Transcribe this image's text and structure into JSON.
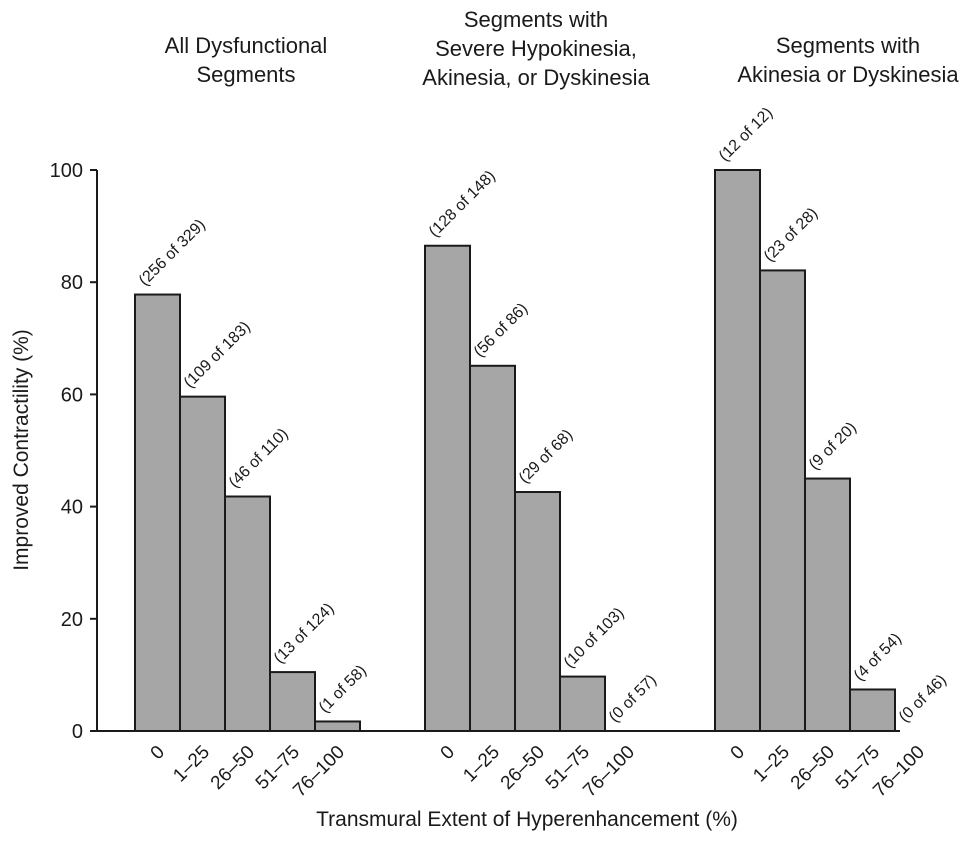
{
  "colors": {
    "bar_fill": "#a6a6a6",
    "bar_stroke": "#1a1a1a",
    "text": "#1a1a1a"
  },
  "chart_data": {
    "type": "bar",
    "xlabel": "Transmural Extent of Hyperenhancement (%)",
    "ylabel": "Improved Contractility (%)",
    "ylim": [
      0,
      100
    ],
    "yticks": [
      0,
      20,
      40,
      60,
      80,
      100
    ],
    "grid": false,
    "categories": [
      "0",
      "1–25",
      "26–50",
      "51–75",
      "76–100"
    ],
    "panels": [
      {
        "title_lines": [
          "All Dysfunctional",
          "Segments"
        ],
        "values": [
          77.8,
          59.6,
          41.8,
          10.5,
          1.7
        ],
        "labels": [
          "(256 of 329)",
          "(109 of 183)",
          "(46 of 110)",
          "(13 of 124)",
          "(1 of 58)"
        ]
      },
      {
        "title_lines": [
          "Segments with",
          "Severe Hypokinesia,",
          "Akinesia, or Dyskinesia"
        ],
        "values": [
          86.5,
          65.1,
          42.6,
          9.7,
          0
        ],
        "labels": [
          "(128 of 148)",
          "(56 of 86)",
          "(29 of 68)",
          "(10 of 103)",
          "(0 of 57)"
        ]
      },
      {
        "title_lines": [
          "Segments with",
          "Akinesia or Dyskinesia"
        ],
        "values": [
          100,
          82.1,
          45.0,
          7.4,
          0
        ],
        "labels": [
          "(12 of 12)",
          "(23 of 28)",
          "(9 of 20)",
          "(4 of 54)",
          "(0 of 46)"
        ]
      }
    ]
  }
}
